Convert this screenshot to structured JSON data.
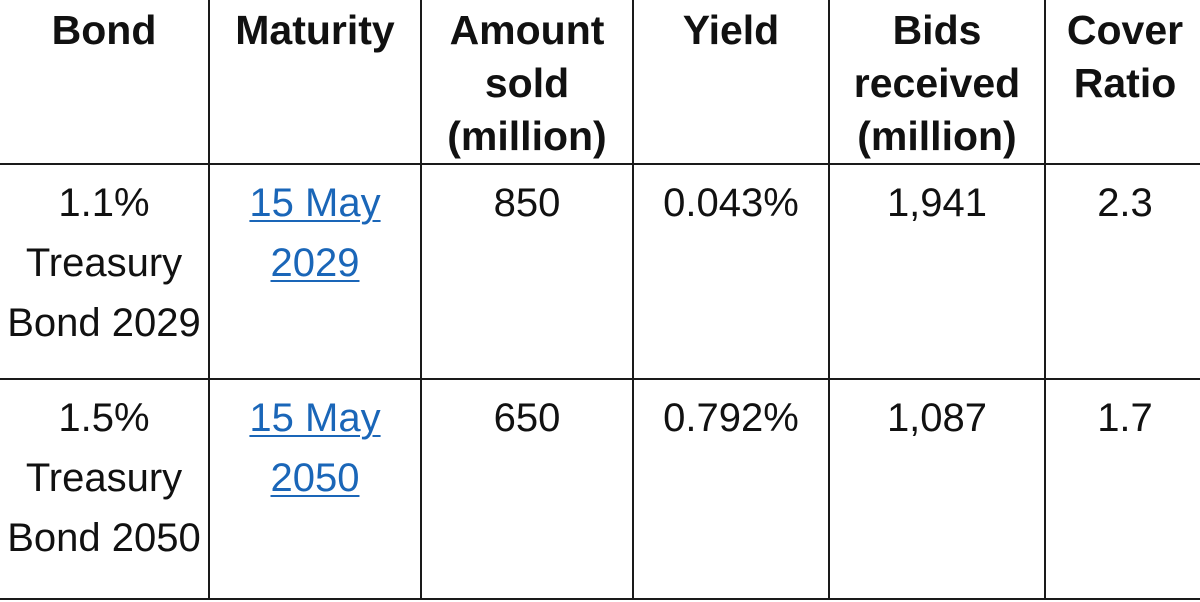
{
  "table": {
    "headers": [
      "Bond",
      "Maturity",
      "Amount sold (million)",
      "Yield",
      "Bids received (million)",
      "Cover Ratio"
    ],
    "rows": [
      {
        "bond": "1.1% Treasury Bond 2029",
        "maturity": "15 May 2029",
        "amount_sold": "850",
        "yield": "0.043%",
        "bids_received": "1,941",
        "cover_ratio": "2.3"
      },
      {
        "bond": "1.5% Treasury Bond 2050",
        "maturity": "15 May 2050",
        "amount_sold": "650",
        "yield": "0.792%",
        "bids_received": "1,087",
        "cover_ratio": "1.7"
      }
    ]
  },
  "colors": {
    "link": "#1a66b8",
    "border": "#1a1a1a",
    "text": "#111111",
    "background": "#ffffff"
  }
}
